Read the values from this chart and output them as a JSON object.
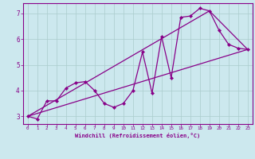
{
  "title": "",
  "xlabel": "Windchill (Refroidissement éolien,°C)",
  "bg_color": "#cce8ee",
  "line_color": "#880088",
  "grid_color": "#aacccc",
  "xlim": [
    -0.5,
    23.5
  ],
  "ylim": [
    2.7,
    7.4
  ],
  "yticks": [
    3,
    4,
    5,
    6,
    7
  ],
  "xticks": [
    0,
    1,
    2,
    3,
    4,
    5,
    6,
    7,
    8,
    9,
    10,
    11,
    12,
    13,
    14,
    15,
    16,
    17,
    18,
    19,
    20,
    21,
    22,
    23
  ],
  "series1_x": [
    0,
    1,
    2,
    3,
    4,
    5,
    6,
    7,
    8,
    9,
    10,
    11,
    12,
    13,
    14,
    15,
    16,
    17,
    18,
    19,
    20,
    21,
    22,
    23
  ],
  "series1_y": [
    3.0,
    2.9,
    3.6,
    3.6,
    4.1,
    4.3,
    4.35,
    4.0,
    3.5,
    3.35,
    3.5,
    4.0,
    5.5,
    3.9,
    6.1,
    4.5,
    6.85,
    6.9,
    7.2,
    7.1,
    6.35,
    5.8,
    5.65,
    5.6
  ],
  "series2_x": [
    0,
    23
  ],
  "series2_y": [
    3.0,
    5.6
  ],
  "series3_x": [
    0,
    19,
    23
  ],
  "series3_y": [
    3.0,
    7.1,
    5.6
  ]
}
